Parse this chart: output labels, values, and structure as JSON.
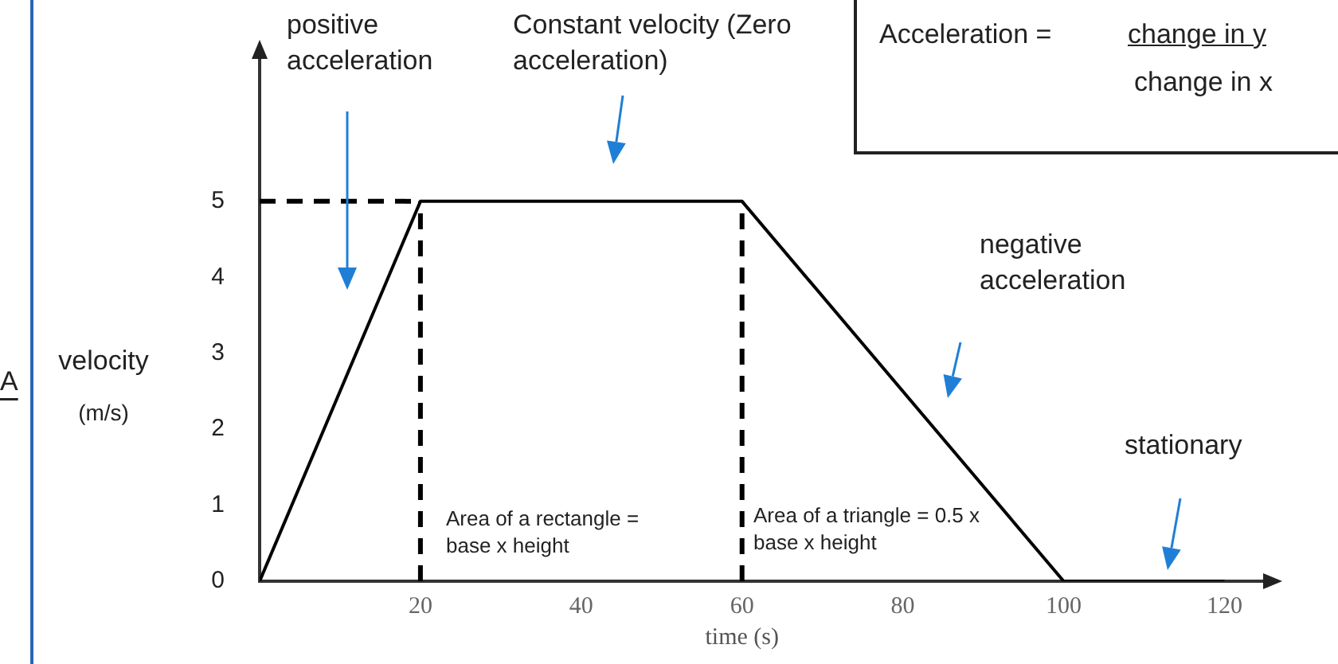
{
  "chart_data": {
    "type": "line",
    "xlabel": "time (s)",
    "ylabel": "velocity (m/s)",
    "xlim": [
      0,
      126
    ],
    "ylim": [
      0,
      7
    ],
    "xticks": [
      20,
      40,
      60,
      80,
      100,
      120
    ],
    "yticks": [
      0,
      1,
      2,
      3,
      4,
      5
    ],
    "grid": false,
    "legend": false,
    "marker": "none",
    "series": [
      {
        "x": [
          0,
          20,
          60,
          100,
          120
        ],
        "values": [
          0,
          5,
          5,
          0,
          0
        ],
        "color": "#000000",
        "line_style": "solid"
      },
      {
        "x": [
          0,
          20
        ],
        "values": [
          5,
          5
        ],
        "color": "#000000",
        "line_style": "dashed"
      },
      {
        "x": [
          20,
          20
        ],
        "values": [
          0,
          5
        ],
        "color": "#000000",
        "line_style": "dashed"
      },
      {
        "x": [
          60,
          60
        ],
        "values": [
          0,
          5
        ],
        "color": "#000000",
        "line_style": "dashed"
      }
    ],
    "annotations": [
      "positive acceleration",
      "Constant velocity (Zero acceleration)",
      "negative acceleration",
      "stationary",
      "Area of a rectangle = base x height",
      "Area of a triangle = 0.5 x base x height",
      "A",
      "Acceleration =",
      "change in y",
      "change in x"
    ]
  }
}
